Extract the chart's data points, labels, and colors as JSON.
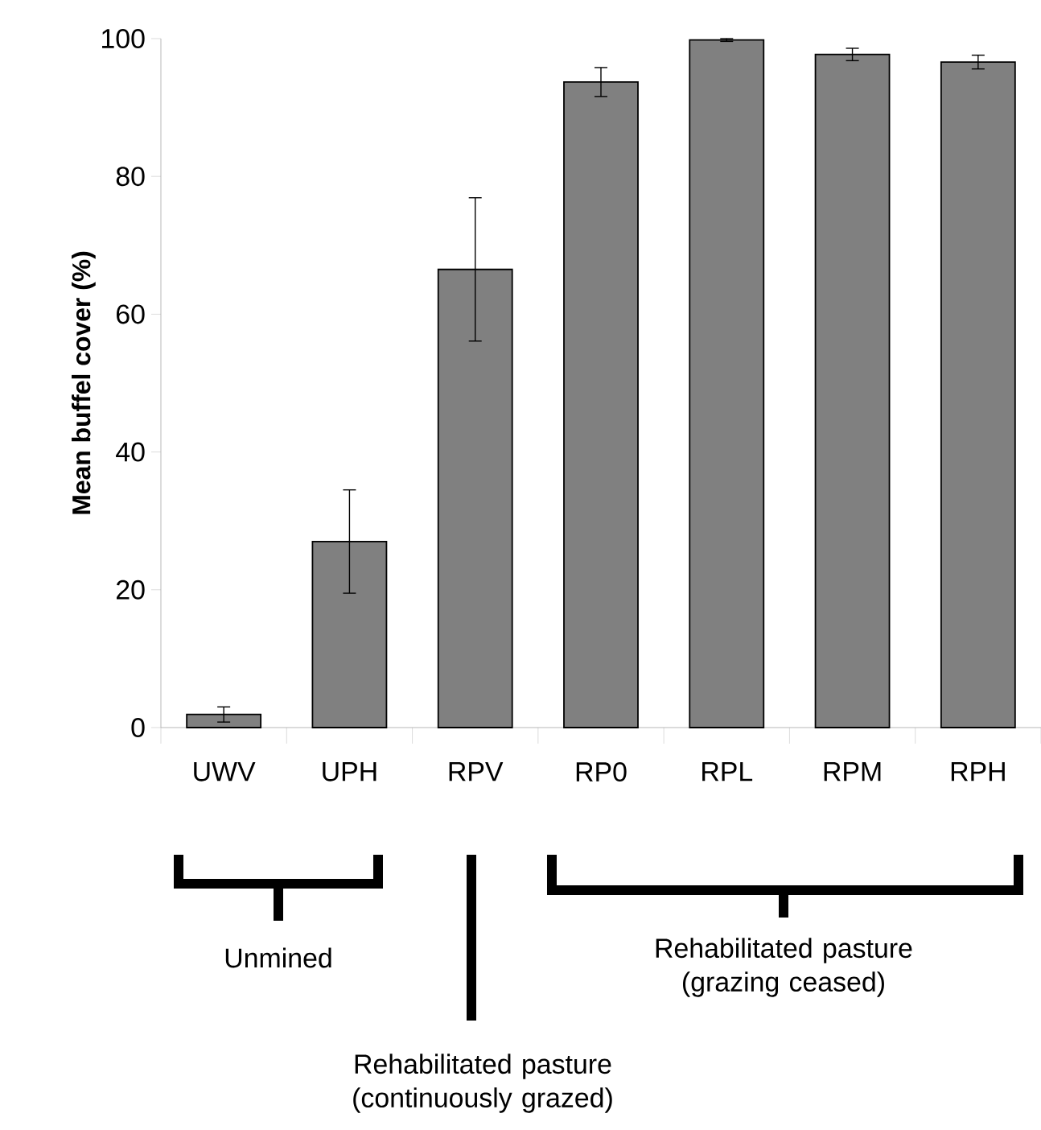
{
  "chart_data": {
    "type": "bar",
    "ylabel": "Mean buffel cover (%)",
    "categories": [
      "UWV",
      "UPH",
      "RPV",
      "RP0",
      "RPL",
      "RPM",
      "RPH"
    ],
    "values": [
      1.9,
      27.0,
      66.5,
      93.7,
      99.8,
      97.7,
      96.6
    ],
    "errors": [
      1.1,
      7.5,
      10.4,
      2.1,
      0.2,
      0.9,
      1.0
    ],
    "color": "#808080",
    "ylim": [
      0,
      100
    ],
    "yticks": [
      0,
      20,
      40,
      60,
      80,
      100
    ],
    "grid": false,
    "annotations": [
      "Unmined",
      "Rehabilitated pasture (continuously grazed)",
      "Rehabilitated pasture (grazing ceased)"
    ]
  }
}
